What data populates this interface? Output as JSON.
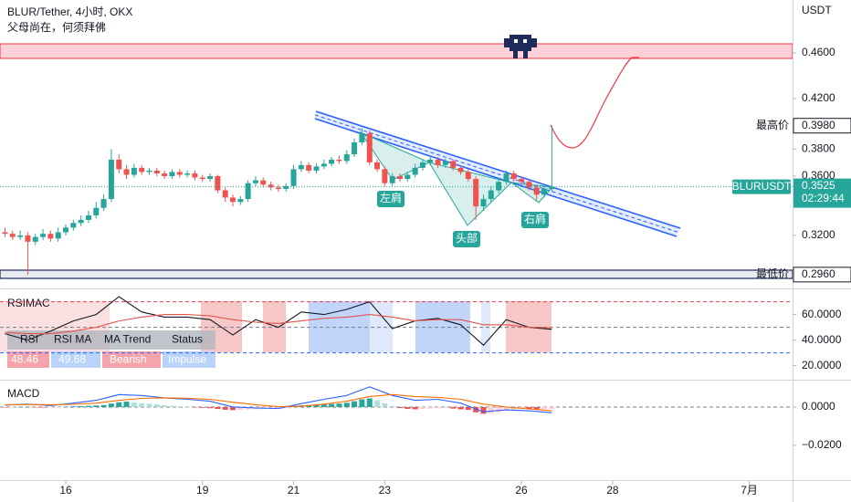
{
  "chart_data": [
    {
      "type": "candlestick",
      "title": "BLUR/Tether, 4小时, OKX",
      "subtitle": "父母尚在，何须拜佛",
      "unit": "USDT",
      "symbol": "BLURUSDT",
      "countdown": "02:29:44",
      "x": [
        14.667,
        14.833,
        15,
        15.167,
        15.333,
        15.5,
        15.667,
        15.833,
        16,
        16.167,
        16.333,
        16.5,
        16.667,
        16.833,
        17,
        17.167,
        17.333,
        17.5,
        17.667,
        17.833,
        18,
        18.167,
        18.333,
        18.5,
        18.667,
        18.833,
        19,
        19.167,
        19.333,
        19.5,
        19.667,
        19.833,
        20,
        20.167,
        20.333,
        20.5,
        20.667,
        20.833,
        21,
        21.167,
        21.333,
        21.5,
        21.667,
        21.833,
        22,
        22.167,
        22.333,
        22.5,
        22.667,
        22.833,
        23,
        23.167,
        23.333,
        23.5,
        23.667,
        23.833,
        24,
        24.167,
        24.333,
        24.5,
        24.667,
        24.833,
        25,
        25.167,
        25.333,
        25.5,
        25.667,
        25.833,
        26,
        26.167,
        26.333,
        26.5,
        26.667
      ],
      "open": [
        0.322,
        0.321,
        0.319,
        0.32,
        0.316,
        0.319,
        0.321,
        0.318,
        0.322,
        0.325,
        0.328,
        0.33,
        0.333,
        0.338,
        0.344,
        0.372,
        0.365,
        0.361,
        0.366,
        0.363,
        0.364,
        0.362,
        0.36,
        0.363,
        0.361,
        0.362,
        0.359,
        0.358,
        0.36,
        0.35,
        0.345,
        0.342,
        0.344,
        0.355,
        0.357,
        0.354,
        0.352,
        0.351,
        0.353,
        0.365,
        0.368,
        0.364,
        0.367,
        0.369,
        0.372,
        0.371,
        0.376,
        0.385,
        0.392,
        0.37,
        0.365,
        0.355,
        0.36,
        0.358,
        0.361,
        0.366,
        0.37,
        0.372,
        0.368,
        0.371,
        0.366,
        0.363,
        0.358,
        0.339,
        0.344,
        0.35,
        0.356,
        0.362,
        0.358,
        0.356,
        0.352,
        0.347,
        0.351
      ],
      "high": [
        0.325,
        0.323,
        0.323,
        0.322,
        0.321,
        0.324,
        0.323,
        0.325,
        0.327,
        0.33,
        0.333,
        0.336,
        0.342,
        0.347,
        0.38,
        0.376,
        0.368,
        0.369,
        0.368,
        0.366,
        0.366,
        0.364,
        0.365,
        0.365,
        0.364,
        0.364,
        0.361,
        0.362,
        0.361,
        0.352,
        0.347,
        0.346,
        0.357,
        0.36,
        0.359,
        0.356,
        0.354,
        0.355,
        0.368,
        0.371,
        0.37,
        0.369,
        0.372,
        0.374,
        0.375,
        0.379,
        0.388,
        0.396,
        0.394,
        0.372,
        0.367,
        0.362,
        0.362,
        0.363,
        0.369,
        0.372,
        0.375,
        0.374,
        0.373,
        0.372,
        0.368,
        0.365,
        0.36,
        0.347,
        0.353,
        0.359,
        0.364,
        0.364,
        0.36,
        0.358,
        0.354,
        0.353,
        0.398
      ],
      "low": [
        0.319,
        0.317,
        0.317,
        0.296,
        0.314,
        0.317,
        0.316,
        0.316,
        0.32,
        0.323,
        0.326,
        0.328,
        0.331,
        0.336,
        0.342,
        0.362,
        0.358,
        0.359,
        0.361,
        0.361,
        0.36,
        0.358,
        0.358,
        0.359,
        0.359,
        0.357,
        0.356,
        0.356,
        0.348,
        0.342,
        0.339,
        0.34,
        0.342,
        0.353,
        0.352,
        0.35,
        0.349,
        0.349,
        0.351,
        0.363,
        0.362,
        0.362,
        0.365,
        0.367,
        0.369,
        0.369,
        0.374,
        0.383,
        0.368,
        0.363,
        0.353,
        0.353,
        0.356,
        0.356,
        0.359,
        0.364,
        0.368,
        0.366,
        0.366,
        0.364,
        0.361,
        0.356,
        0.33,
        0.336,
        0.342,
        0.348,
        0.354,
        0.356,
        0.354,
        0.35,
        0.343,
        0.345,
        0.349
      ],
      "close": [
        0.321,
        0.319,
        0.32,
        0.316,
        0.319,
        0.321,
        0.318,
        0.322,
        0.325,
        0.328,
        0.33,
        0.333,
        0.338,
        0.344,
        0.372,
        0.365,
        0.361,
        0.366,
        0.363,
        0.364,
        0.362,
        0.36,
        0.363,
        0.361,
        0.362,
        0.359,
        0.358,
        0.36,
        0.35,
        0.345,
        0.342,
        0.344,
        0.355,
        0.357,
        0.354,
        0.352,
        0.351,
        0.353,
        0.365,
        0.368,
        0.364,
        0.367,
        0.369,
        0.372,
        0.371,
        0.376,
        0.385,
        0.392,
        0.37,
        0.365,
        0.355,
        0.36,
        0.358,
        0.361,
        0.366,
        0.37,
        0.372,
        0.368,
        0.371,
        0.366,
        0.363,
        0.358,
        0.339,
        0.344,
        0.35,
        0.356,
        0.362,
        0.358,
        0.356,
        0.352,
        0.347,
        0.351,
        0.3525
      ],
      "up_color": "#26a69a",
      "down_color": "#ef5350",
      "log_scale": true,
      "grid": false,
      "xlim": [
        14.557,
        31.95
      ],
      "xticks": [
        16,
        19,
        21,
        23,
        26,
        28,
        {
          "value": 31,
          "label": "7月"
        }
      ],
      "ylim": [
        0.2885,
        0.511
      ],
      "yticks": [
        {
          "value": 0.46,
          "label": "0.4600"
        },
        {
          "value": 0.42,
          "label": "0.4200"
        },
        {
          "value": 0.38,
          "label": "0.3800"
        },
        {
          "value": 0.36,
          "label": "0.3600"
        },
        {
          "value": 0.32,
          "label": "0.3200"
        }
      ],
      "price_labels": [
        {
          "name": "最高价",
          "value": 0.398,
          "value_label": "0.3980"
        },
        {
          "name": "最低价",
          "value": 0.296,
          "value_label": "0.2960"
        }
      ],
      "annotations": [
        "左肩",
        "头部",
        "右肩"
      ]
    },
    {
      "type": "line",
      "title": "RSIMAC",
      "x": [
        14.667,
        15.167,
        15.667,
        16.167,
        16.667,
        17.167,
        17.667,
        18.167,
        18.667,
        19.167,
        19.667,
        20.167,
        20.667,
        21.167,
        21.667,
        22.167,
        22.667,
        23.167,
        23.667,
        24.167,
        24.667,
        25.167,
        25.667,
        26.167,
        26.667
      ],
      "series": [
        {
          "name": "RSI",
          "color": "#131722",
          "values": [
            45,
            40,
            47,
            55,
            60,
            74,
            62,
            58,
            58,
            56,
            44,
            56,
            50,
            62,
            60,
            64,
            70,
            49,
            55,
            57,
            52,
            36,
            56,
            50,
            48.46
          ]
        },
        {
          "name": "RSI MA",
          "color": "#e5534b",
          "values": [
            46,
            45,
            45,
            47,
            50,
            55,
            58,
            60,
            60,
            59,
            56,
            54,
            53,
            55,
            57,
            58,
            60,
            58,
            55,
            56,
            56,
            52,
            52,
            50,
            49.68
          ]
        }
      ],
      "levels": [
        70,
        50,
        30
      ],
      "level_colors": [
        "#f23645",
        "#787b86",
        "#2962ff"
      ],
      "status_table": [
        {
          "label": "MA Trend",
          "value": "Bearish"
        },
        {
          "label": "Status",
          "value": "Impulse"
        }
      ],
      "ylim": [
        9,
        79
      ],
      "yticks": [
        {
          "value": 60,
          "label": "60.0000"
        },
        {
          "value": 40,
          "label": "40.0000"
        },
        {
          "value": 20,
          "label": "20.0000"
        }
      ]
    },
    {
      "type": "macd",
      "title": "MACD",
      "histogram": [
        -0.0002,
        -0.0001,
        0,
        0.0001,
        -0.0002,
        -0.0003,
        -0.0002,
        -0.0001,
        0.0002,
        0.0004,
        0.0005,
        0.0006,
        0.0008,
        0.001,
        0.0018,
        0.0025,
        0.0028,
        0.0024,
        0.002,
        0.0017,
        0.0014,
        0.001,
        0.0006,
        0.0003,
        0,
        -0.0002,
        -0.0004,
        -0.0006,
        -0.001,
        -0.0014,
        -0.0016,
        -0.0015,
        -0.0013,
        -0.0012,
        -0.001,
        -0.0008,
        -0.0006,
        -0.0004,
        0.0002,
        0.0008,
        0.001,
        0.0012,
        0.0014,
        0.0016,
        0.0018,
        0.0022,
        0.003,
        0.004,
        0.0045,
        0.0035,
        0.002,
        0.0005,
        -0.0005,
        -0.001,
        -0.0012,
        -0.001,
        -0.0008,
        -0.0006,
        -0.0005,
        -0.0008,
        -0.0012,
        -0.0015,
        -0.0028,
        -0.0035,
        -0.0032,
        -0.0025,
        -0.0018,
        -0.0012,
        -0.001,
        -0.0012,
        -0.0014,
        -0.0012,
        -0.001
      ],
      "hist_colors": [
        "#26a69a",
        "#b2dfdb",
        "#ef5350",
        "#ffcdd2"
      ],
      "series": [
        {
          "color": "#2962ff",
          "values": [
            0.001,
            0.0015,
            0.0008,
            0.002,
            0.0035,
            0.0065,
            0.006,
            0.0048,
            0.004,
            0.003,
            0,
            -0.0005,
            -0.0008,
            0.0018,
            0.004,
            0.006,
            0.0105,
            0.006,
            0.0035,
            0.004,
            0.002,
            -0.0025,
            -0.0015,
            -0.002,
            -0.003
          ]
        },
        {
          "color": "#ff6d00",
          "values": [
            0.0012,
            0.0013,
            0.0012,
            0.0014,
            0.002,
            0.0035,
            0.0045,
            0.0048,
            0.0046,
            0.004,
            0.0025,
            0.0012,
            0.0002,
            0.0005,
            0.0015,
            0.003,
            0.0055,
            0.0065,
            0.0055,
            0.005,
            0.004,
            0.0015,
            0,
            -0.001,
            -0.002
          ]
        }
      ],
      "ylim": [
        -0.0381,
        0.0133
      ],
      "yticks": [
        {
          "value": 0,
          "label": "0.0000"
        },
        {
          "value": -0.02,
          "label": "−0.0200"
        }
      ]
    }
  ]
}
